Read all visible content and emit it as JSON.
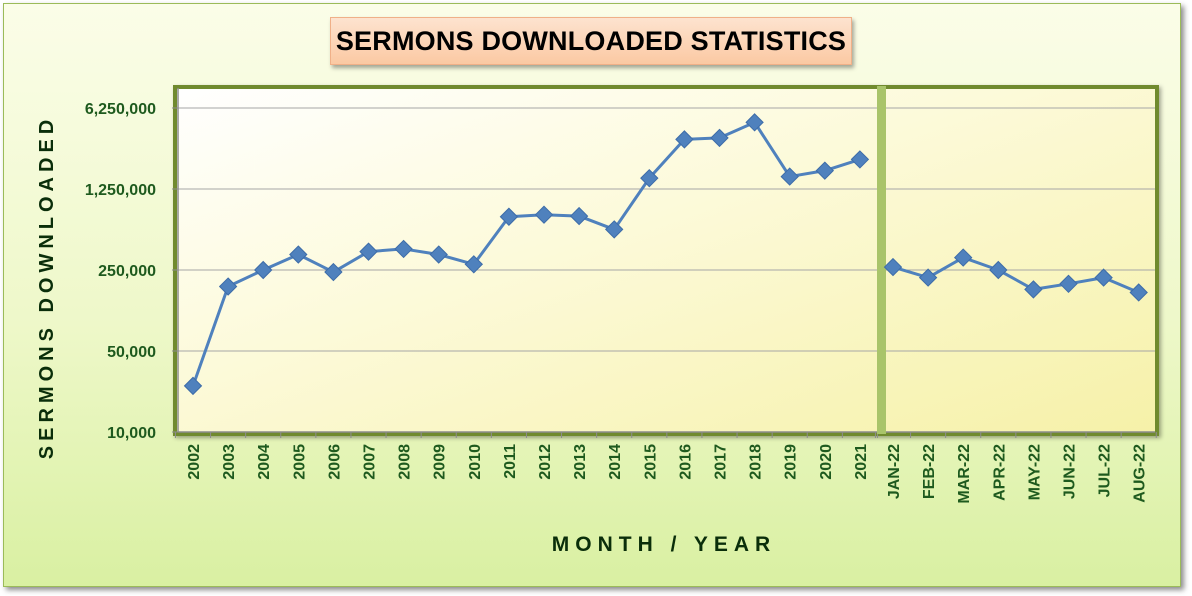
{
  "chart_data": {
    "type": "line",
    "title": "SERMONS DOWNLOADED STATISTICS",
    "xlabel": "MONTH / YEAR",
    "ylabel": "SERMONS DOWNLOADED",
    "yscale": "log",
    "ylim": [
      10000,
      6250000
    ],
    "y_ticks": [
      10000,
      50000,
      250000,
      1250000,
      6250000
    ],
    "y_tick_labels": [
      "10,000",
      "50,000",
      "250,000",
      "1,250,000",
      "6,250,000"
    ],
    "grid": true,
    "legend": "none",
    "series_color": "#4f81bd",
    "panels": [
      {
        "name": "",
        "categories": [
          "2002",
          "2003",
          "2004",
          "2005",
          "2006",
          "2007",
          "2008",
          "2009",
          "2010",
          "2011",
          "2012",
          "2013",
          "2014",
          "2015",
          "2016",
          "2017",
          "2018",
          "2019",
          "2020",
          "2021"
        ],
        "values": [
          25000,
          180000,
          250000,
          340000,
          240000,
          360000,
          380000,
          340000,
          280000,
          720000,
          750000,
          730000,
          560000,
          1550000,
          3350000,
          3450000,
          4700000,
          1600000,
          1800000,
          2250000
        ]
      },
      {
        "name": "",
        "categories": [
          "JAN-22",
          "FEB-22",
          "MAR-22",
          "APR-22",
          "MAY-22",
          "JUN-22",
          "JUL-22",
          "AUG-22"
        ],
        "values": [
          265000,
          215000,
          320000,
          250000,
          170000,
          190000,
          215000,
          160000
        ]
      }
    ]
  }
}
